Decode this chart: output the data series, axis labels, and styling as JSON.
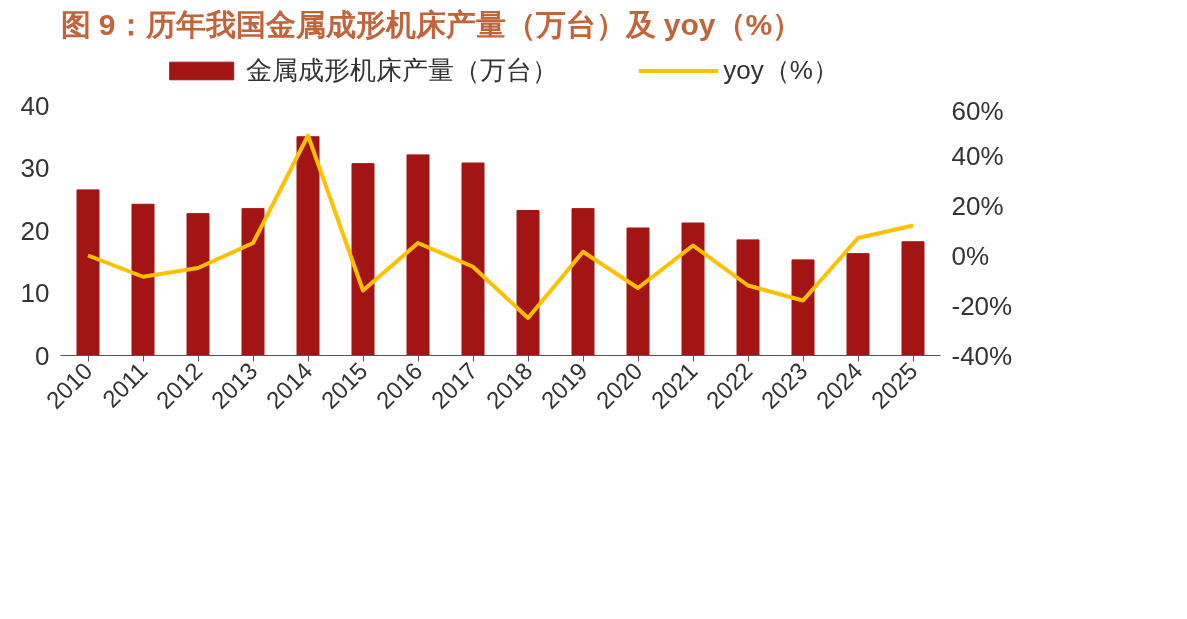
{
  "chart_data": {
    "type": "bar",
    "title": "图 9：历年我国金属成形机床产量（万台）及 yoy（%）",
    "categories": [
      "2010",
      "2011",
      "2012",
      "2013",
      "2014",
      "2015",
      "2016",
      "2017",
      "2018",
      "2019",
      "2020",
      "2021",
      "2022",
      "2023",
      "2024",
      "2025"
    ],
    "series": [
      {
        "name": "金属成形机床产量（万台）",
        "color": "#a31515",
        "values": [
          26.5,
          24.2,
          22.7,
          23.5,
          35.0,
          30.7,
          32.1,
          30.8,
          23.2,
          23.5,
          20.4,
          21.2,
          18.5,
          15.3,
          16.3,
          18.2
        ]
      },
      {
        "name": "yoy（%）",
        "type": "line",
        "axis": "y2",
        "color": "#ffc000",
        "values": [
          0,
          -8.5,
          -5,
          5,
          48,
          -14,
          5,
          -4.5,
          -25,
          1.5,
          -13,
          4,
          -12,
          -18,
          7,
          12
        ]
      }
    ],
    "ylim": [
      0,
      40
    ],
    "yticks": [
      0,
      10,
      20,
      30,
      40
    ],
    "y2lim": [
      -40,
      60
    ],
    "y2ticks": [
      {
        "value": -40,
        "label": "-40%"
      },
      {
        "value": -20,
        "label": "-20%"
      },
      {
        "value": 0,
        "label": "0%"
      },
      {
        "value": 20,
        "label": "20%"
      },
      {
        "value": 40,
        "label": "40%"
      },
      {
        "value": 60,
        "label": "60%"
      }
    ],
    "grid": false,
    "legend": "top",
    "marker": "none",
    "line_style": "solid"
  }
}
